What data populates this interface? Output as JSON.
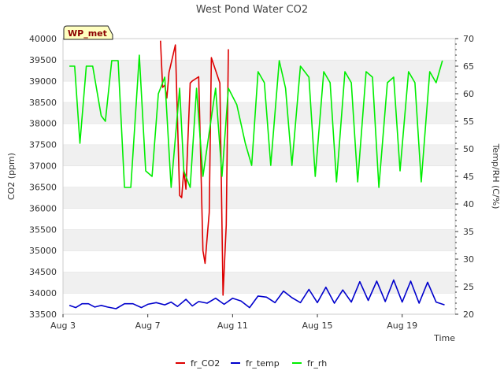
{
  "chart_data": {
    "type": "line",
    "title": "West Pond Water CO2",
    "xlabel": "Time",
    "ylabel_left": "CO2 (ppm)",
    "ylabel_right": "Temp/RH (C/%)",
    "badge": "WP_met",
    "x_range_days": [
      3,
      21.5
    ],
    "x_ticks": [
      {
        "day": 3,
        "label": "Aug 3"
      },
      {
        "day": 7,
        "label": "Aug 7"
      },
      {
        "day": 11,
        "label": "Aug 11"
      },
      {
        "day": 15,
        "label": "Aug 15"
      },
      {
        "day": 19,
        "label": "Aug 19"
      }
    ],
    "ylim_left": [
      33500,
      40000
    ],
    "yticks_left": [
      "33500",
      "34000",
      "34500",
      "35000",
      "35500",
      "36000",
      "36500",
      "37000",
      "37500",
      "38000",
      "38500",
      "39000",
      "39500",
      "40000"
    ],
    "ylim_right": [
      20,
      70
    ],
    "yticks_right": [
      "20",
      "25",
      "30",
      "35",
      "40",
      "45",
      "50",
      "55",
      "60",
      "65",
      "70"
    ],
    "grid": "horizontal bands",
    "legend_position": "bottom",
    "series": [
      {
        "name": "fr_CO2",
        "axis": "left",
        "color": "#dd0000",
        "x": [
          7.6,
          7.7,
          7.8,
          7.9,
          8.0,
          8.3,
          8.5,
          8.6,
          8.7,
          8.8,
          9.0,
          9.1,
          9.4,
          9.6,
          9.7,
          9.8,
          9.9,
          10.0,
          10.4,
          10.55,
          10.7,
          10.8
        ],
        "y": [
          39950,
          38850,
          38900,
          38600,
          39200,
          39850,
          36300,
          36250,
          36900,
          36450,
          38950,
          39000,
          39100,
          35000,
          34700,
          35300,
          35900,
          39550,
          38950,
          33950,
          35600,
          39750
        ]
      },
      {
        "name": "fr_temp",
        "axis": "right",
        "color": "#0000cc",
        "x": [
          3.3,
          3.6,
          3.9,
          4.2,
          4.5,
          4.8,
          5.1,
          5.5,
          5.9,
          6.3,
          6.7,
          7.0,
          7.4,
          7.8,
          8.1,
          8.4,
          8.8,
          9.1,
          9.4,
          9.8,
          10.2,
          10.6,
          11.0,
          11.4,
          11.8,
          12.2,
          12.6,
          13.0,
          13.4,
          13.8,
          14.2,
          14.6,
          15.0,
          15.4,
          15.8,
          16.2,
          16.6,
          17.0,
          17.4,
          17.8,
          18.2,
          18.6,
          19.0,
          19.4,
          19.8,
          20.2,
          20.6,
          21.0
        ],
        "y": [
          21.6,
          21.2,
          21.9,
          21.9,
          21.3,
          21.6,
          21.3,
          21.0,
          21.9,
          21.9,
          21.2,
          21.8,
          22.1,
          21.7,
          22.2,
          21.4,
          22.7,
          21.5,
          22.3,
          22.0,
          22.9,
          21.8,
          22.9,
          22.4,
          21.2,
          23.3,
          23.1,
          22.1,
          24.2,
          23.0,
          22.1,
          24.5,
          22.1,
          24.9,
          22.0,
          24.4,
          22.2,
          25.9,
          22.5,
          26.0,
          22.3,
          26.2,
          22.2,
          26.0,
          22.0,
          25.8,
          22.2,
          21.7
        ]
      },
      {
        "name": "fr_rh",
        "axis": "right",
        "color": "#00ee00",
        "x": [
          3.3,
          3.55,
          3.8,
          4.1,
          4.4,
          4.8,
          5.0,
          5.3,
          5.6,
          5.9,
          6.2,
          6.6,
          6.9,
          7.2,
          7.5,
          7.8,
          8.1,
          8.5,
          8.7,
          9.0,
          9.3,
          9.6,
          9.9,
          10.2,
          10.5,
          10.8,
          11.2,
          11.6,
          11.9,
          12.2,
          12.5,
          12.8,
          13.2,
          13.5,
          13.8,
          14.2,
          14.6,
          14.9,
          15.3,
          15.6,
          15.9,
          16.3,
          16.6,
          16.9,
          17.3,
          17.6,
          17.9,
          18.3,
          18.6,
          18.9,
          19.3,
          19.6,
          19.9,
          20.3,
          20.6,
          20.9
        ],
        "y": [
          65,
          65,
          51,
          65,
          65,
          56,
          55,
          66,
          66,
          43,
          43,
          67,
          46,
          45,
          60,
          63,
          43,
          61,
          46,
          43,
          61,
          45,
          53,
          61,
          45,
          61,
          58,
          51,
          47,
          64,
          62,
          47,
          66,
          61,
          47,
          65,
          63,
          45,
          64,
          62,
          44,
          64,
          62,
          44,
          64,
          63,
          43,
          62,
          63,
          46,
          64,
          62,
          44,
          64,
          62,
          66
        ]
      }
    ]
  }
}
